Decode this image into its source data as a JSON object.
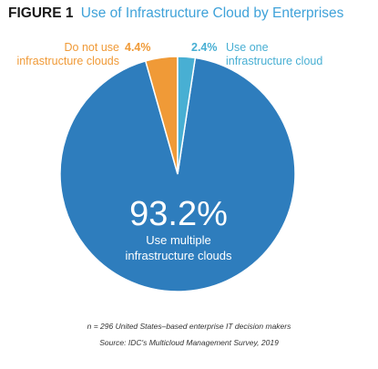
{
  "figure_label": "FIGURE 1",
  "colors": {
    "multiple": "#2e7dbd",
    "not_use": "#f09a37",
    "one": "#48afd3",
    "title": "#3fa2d9"
  },
  "chart_data": {
    "type": "pie",
    "title": "Use of Infrastructure Cloud by Enterprises",
    "slices": [
      {
        "value_label": "4.4%",
        "label_lines": [
          "Do not use",
          "infrastructure clouds"
        ],
        "value": 4.4,
        "color": "#f09a37"
      },
      {
        "value_label": "2.4%",
        "label_lines": [
          "Use one",
          "infrastructure cloud"
        ],
        "value": 2.4,
        "color": "#48afd3"
      },
      {
        "value_label": "93.2%",
        "label_lines": [
          "Use multiple",
          "infrastructure clouds"
        ],
        "value": 93.2,
        "color": "#2e7dbd"
      }
    ],
    "legend": "none"
  },
  "footnotes": {
    "sample": "n = 296 United States–based enterprise IT decision makers",
    "source": "Source: IDC's Multicloud Management Survey, 2019"
  }
}
